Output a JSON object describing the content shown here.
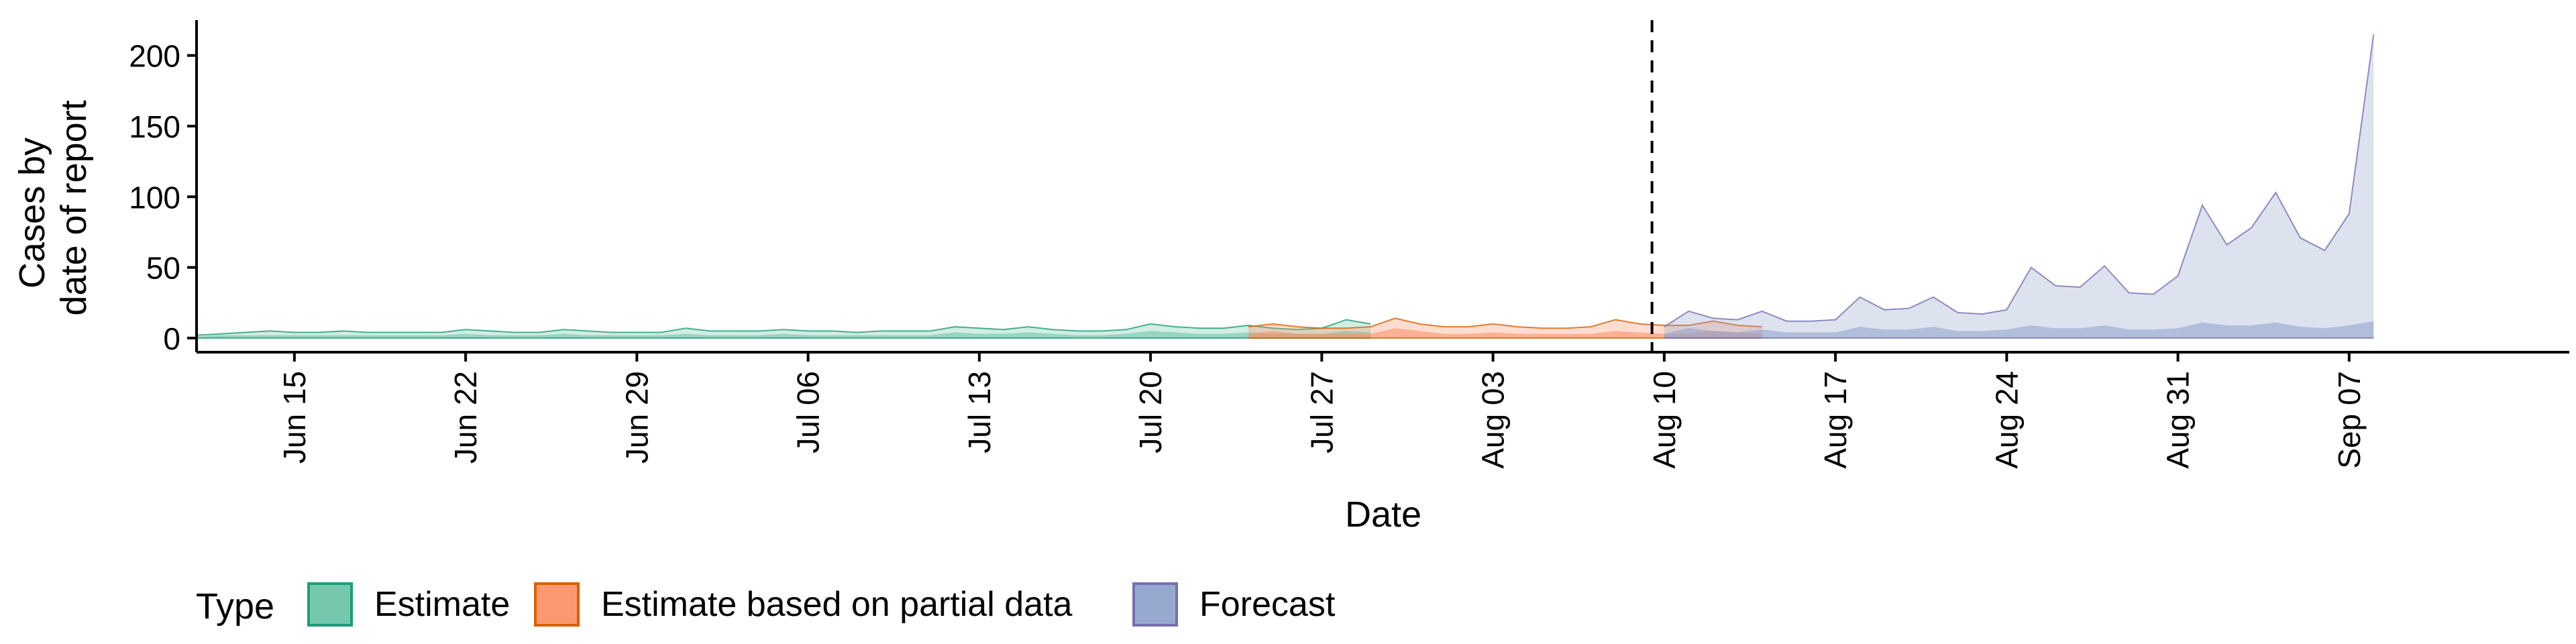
{
  "chart_data": {
    "type": "area",
    "xlabel": "Date",
    "ylabel_lines": [
      "Cases by",
      "date of report"
    ],
    "y_ticks": [
      0,
      50,
      100,
      150,
      200
    ],
    "ylim": [
      -10,
      225
    ],
    "x_start": "2020-06-11",
    "x_end": "2020-09-16",
    "x_ticks": [
      {
        "date": "2020-06-15",
        "label": "Jun 15"
      },
      {
        "date": "2020-06-22",
        "label": "Jun 22"
      },
      {
        "date": "2020-06-29",
        "label": "Jun 29"
      },
      {
        "date": "2020-07-06",
        "label": "Jul 06"
      },
      {
        "date": "2020-07-13",
        "label": "Jul 13"
      },
      {
        "date": "2020-07-20",
        "label": "Jul 20"
      },
      {
        "date": "2020-07-27",
        "label": "Jul 27"
      },
      {
        "date": "2020-08-03",
        "label": "Aug 03"
      },
      {
        "date": "2020-08-10",
        "label": "Aug 10"
      },
      {
        "date": "2020-08-17",
        "label": "Aug 17"
      },
      {
        "date": "2020-08-24",
        "label": "Aug 24"
      },
      {
        "date": "2020-08-31",
        "label": "Aug 31"
      },
      {
        "date": "2020-09-07",
        "label": "Sep 07"
      }
    ],
    "forecast_date": "2020-08-09",
    "grid": false,
    "legend": {
      "title": "Type",
      "position": "bottom"
    },
    "series": [
      {
        "name": "Estimate",
        "color": "#1b9e77",
        "fill": "#66c2a5",
        "start": "2020-06-11",
        "upper": [
          2,
          3,
          4,
          5,
          4,
          4,
          5,
          4,
          4,
          4,
          4,
          6,
          5,
          4,
          4,
          6,
          5,
          4,
          4,
          4,
          7,
          5,
          5,
          5,
          6,
          5,
          5,
          4,
          5,
          5,
          5,
          8,
          7,
          6,
          8,
          6,
          5,
          5,
          6,
          10,
          8,
          7,
          7,
          9,
          7,
          6,
          7,
          13,
          10
        ],
        "lower": [
          0,
          0,
          0,
          0,
          0,
          0,
          0,
          0,
          0,
          0,
          0,
          0,
          0,
          0,
          0,
          0,
          0,
          0,
          0,
          0,
          0,
          0,
          0,
          0,
          0,
          0,
          0,
          0,
          0,
          0,
          0,
          0,
          0,
          0,
          0,
          0,
          0,
          0,
          0,
          0,
          0,
          0,
          0,
          0,
          0,
          0,
          0,
          0,
          0
        ],
        "inner_upper": [
          1,
          2,
          2,
          2,
          2,
          2,
          2,
          2,
          2,
          2,
          2,
          3,
          2,
          2,
          2,
          3,
          2,
          2,
          2,
          2,
          3,
          2,
          2,
          2,
          3,
          2,
          2,
          2,
          2,
          2,
          2,
          4,
          3,
          3,
          4,
          3,
          2,
          2,
          3,
          5,
          4,
          3,
          3,
          4,
          3,
          3,
          3,
          5,
          4
        ],
        "inner_lower": [
          0,
          0,
          0,
          0,
          0,
          0,
          0,
          0,
          0,
          0,
          0,
          0,
          0,
          0,
          0,
          0,
          0,
          0,
          0,
          0,
          0,
          0,
          0,
          0,
          0,
          0,
          0,
          0,
          0,
          0,
          0,
          0,
          0,
          0,
          0,
          0,
          0,
          0,
          0,
          0,
          0,
          0,
          0,
          0,
          0,
          0,
          0,
          0,
          0
        ]
      },
      {
        "name": "Estimate based on partial data",
        "color": "#d95f02",
        "fill": "#fc8d62",
        "start": "2020-07-24",
        "upper": [
          8,
          10,
          8,
          7,
          7,
          8,
          14,
          10,
          8,
          8,
          10,
          8,
          7,
          7,
          8,
          13,
          10,
          9,
          9,
          12,
          9,
          8
        ],
        "lower": [
          0,
          0,
          0,
          0,
          0,
          0,
          0,
          0,
          0,
          0,
          0,
          0,
          0,
          0,
          0,
          0,
          0,
          0,
          0,
          0,
          0,
          0
        ],
        "inner_upper": [
          3,
          5,
          3,
          3,
          3,
          3,
          7,
          5,
          3,
          3,
          4,
          3,
          3,
          3,
          3,
          5,
          4,
          3,
          3,
          5,
          4,
          3
        ],
        "inner_lower": [
          0,
          0,
          0,
          0,
          0,
          0,
          0,
          0,
          0,
          0,
          0,
          0,
          0,
          0,
          0,
          0,
          0,
          0,
          0,
          0,
          0,
          0
        ]
      },
      {
        "name": "Forecast",
        "color": "#7570b3",
        "fill": "#8da0cb",
        "start": "2020-08-10",
        "upper": [
          8,
          19,
          14,
          13,
          19,
          12,
          12,
          13,
          29,
          20,
          21,
          29,
          18,
          17,
          20,
          50,
          37,
          36,
          51,
          32,
          31,
          44,
          94,
          66,
          78,
          103,
          71,
          62,
          88,
          215
        ],
        "lower": [
          0,
          0,
          0,
          0,
          0,
          0,
          0,
          0,
          0,
          0,
          0,
          0,
          0,
          0,
          0,
          0,
          0,
          0,
          0,
          0,
          0,
          0,
          0,
          0,
          0,
          0,
          0,
          0,
          0,
          0
        ],
        "inner_upper": [
          3,
          7,
          5,
          4,
          6,
          4,
          4,
          4,
          8,
          6,
          6,
          8,
          5,
          5,
          6,
          9,
          7,
          7,
          9,
          6,
          6,
          7,
          11,
          9,
          9,
          11,
          8,
          7,
          9,
          12
        ],
        "inner_lower": [
          0,
          0,
          0,
          0,
          0,
          0,
          0,
          0,
          0,
          0,
          0,
          0,
          0,
          0,
          0,
          0,
          0,
          0,
          0,
          0,
          0,
          0,
          0,
          0,
          0,
          0,
          0,
          0,
          0,
          0
        ]
      }
    ]
  }
}
